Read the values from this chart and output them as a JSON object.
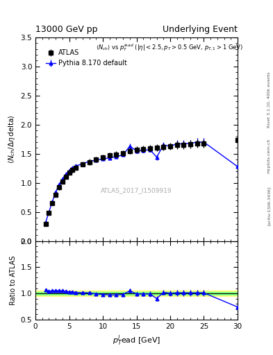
{
  "title_left": "13000 GeV pp",
  "title_right": "Underlying Event",
  "watermark": "ATLAS_2017_I1509919",
  "right_label": "Rivet 3.1.10, 400k events",
  "arxiv_label": "[arXiv:1306.3436]",
  "mcplots_label": "mcplots.cern.ch",
  "atlas_x": [
    1.5,
    2.0,
    2.5,
    3.0,
    3.5,
    4.0,
    4.5,
    5.0,
    5.5,
    6.0,
    7.0,
    8.0,
    9.0,
    10.0,
    11.0,
    12.0,
    13.0,
    14.0,
    15.0,
    16.0,
    17.0,
    18.0,
    19.0,
    20.0,
    21.0,
    22.0,
    23.0,
    24.0,
    25.0,
    30.0
  ],
  "atlas_y": [
    0.3,
    0.48,
    0.65,
    0.8,
    0.92,
    1.02,
    1.11,
    1.18,
    1.22,
    1.26,
    1.32,
    1.36,
    1.4,
    1.44,
    1.47,
    1.49,
    1.51,
    1.55,
    1.57,
    1.58,
    1.59,
    1.6,
    1.62,
    1.63,
    1.65,
    1.65,
    1.66,
    1.68,
    1.68,
    1.73
  ],
  "atlas_yerr": [
    0.03,
    0.03,
    0.04,
    0.04,
    0.04,
    0.04,
    0.04,
    0.04,
    0.04,
    0.04,
    0.04,
    0.05,
    0.05,
    0.05,
    0.05,
    0.05,
    0.05,
    0.05,
    0.06,
    0.06,
    0.06,
    0.06,
    0.06,
    0.06,
    0.07,
    0.07,
    0.07,
    0.07,
    0.07,
    0.1
  ],
  "pythia_x": [
    1.5,
    2.0,
    2.5,
    3.0,
    3.5,
    4.0,
    4.5,
    5.0,
    5.5,
    6.0,
    7.0,
    8.0,
    9.0,
    10.0,
    11.0,
    12.0,
    13.0,
    14.0,
    15.0,
    16.0,
    17.0,
    18.0,
    19.0,
    20.0,
    21.0,
    22.0,
    23.0,
    24.0,
    25.0,
    30.0
  ],
  "pythia_y": [
    0.32,
    0.5,
    0.68,
    0.84,
    0.97,
    1.07,
    1.15,
    1.21,
    1.26,
    1.29,
    1.33,
    1.37,
    1.39,
    1.41,
    1.43,
    1.45,
    1.48,
    1.63,
    1.55,
    1.56,
    1.57,
    1.44,
    1.65,
    1.63,
    1.67,
    1.67,
    1.68,
    1.7,
    1.7,
    1.28
  ],
  "pythia_yerr": [
    0.01,
    0.01,
    0.01,
    0.01,
    0.01,
    0.01,
    0.01,
    0.01,
    0.01,
    0.01,
    0.01,
    0.01,
    0.01,
    0.01,
    0.02,
    0.02,
    0.02,
    0.04,
    0.03,
    0.03,
    0.04,
    0.05,
    0.05,
    0.05,
    0.06,
    0.06,
    0.06,
    0.07,
    0.07,
    0.1
  ],
  "ratio_x": [
    1.5,
    2.0,
    2.5,
    3.0,
    3.5,
    4.0,
    4.5,
    5.0,
    5.5,
    6.0,
    7.0,
    8.0,
    9.0,
    10.0,
    11.0,
    12.0,
    13.0,
    14.0,
    15.0,
    16.0,
    17.0,
    18.0,
    19.0,
    20.0,
    21.0,
    22.0,
    23.0,
    24.0,
    25.0,
    30.0
  ],
  "ratio_y": [
    1.07,
    1.04,
    1.05,
    1.05,
    1.05,
    1.05,
    1.04,
    1.03,
    1.03,
    1.02,
    1.01,
    1.01,
    0.99,
    0.98,
    0.97,
    0.97,
    0.98,
    1.05,
    0.99,
    0.99,
    0.99,
    0.9,
    1.02,
    1.0,
    1.01,
    1.01,
    1.01,
    1.01,
    1.01,
    0.74
  ],
  "ratio_yerr": [
    0.02,
    0.02,
    0.02,
    0.02,
    0.02,
    0.02,
    0.02,
    0.02,
    0.02,
    0.02,
    0.02,
    0.02,
    0.02,
    0.02,
    0.03,
    0.03,
    0.03,
    0.04,
    0.04,
    0.04,
    0.05,
    0.05,
    0.05,
    0.05,
    0.06,
    0.06,
    0.06,
    0.06,
    0.06,
    0.09
  ],
  "ylim_main": [
    0.0,
    3.5
  ],
  "ylim_ratio": [
    0.5,
    2.0
  ],
  "xlim": [
    0,
    30
  ],
  "atlas_color": "black",
  "pythia_color": "blue",
  "band_color_yellow": "#ffff80",
  "band_color_green": "#80ff80",
  "atlas_label": "ATLAS",
  "pythia_label": "Pythia 8.170 default"
}
